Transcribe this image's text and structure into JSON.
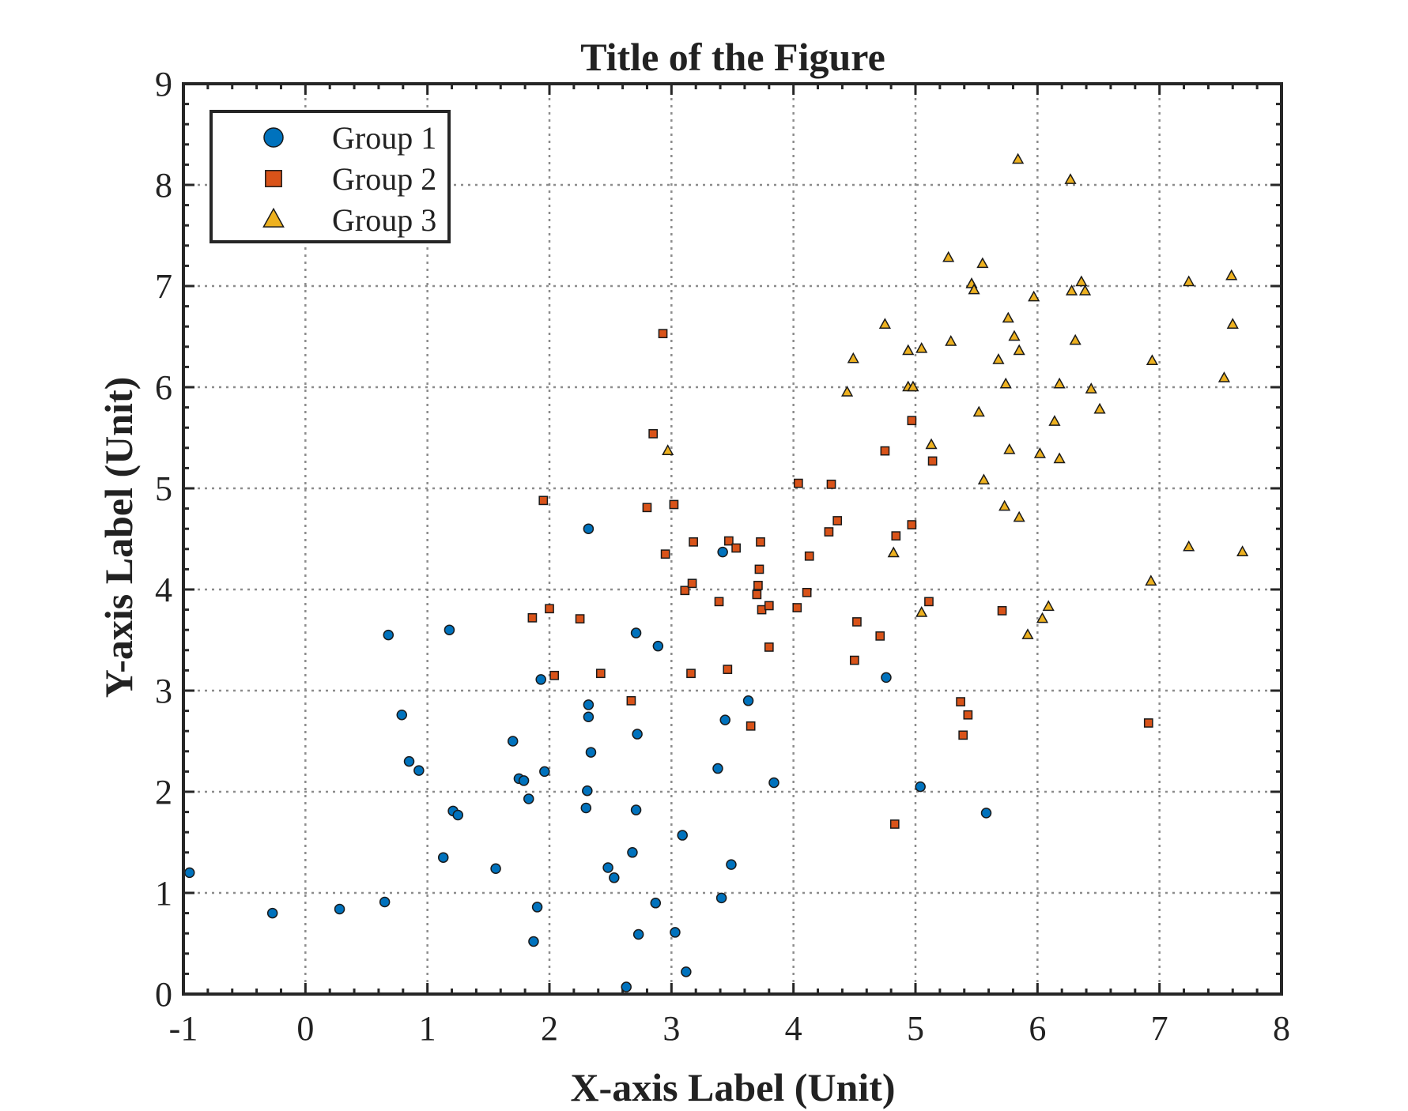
{
  "chart_data": {
    "type": "scatter",
    "title": "Title of the Figure",
    "xlabel": "X-axis Label (Unit)",
    "ylabel": "Y-axis Label (Unit)",
    "xlim": [
      -1,
      8
    ],
    "ylim": [
      0,
      9
    ],
    "xticks": [
      -1,
      0,
      1,
      2,
      3,
      4,
      5,
      6,
      7,
      8
    ],
    "yticks": [
      0,
      1,
      2,
      3,
      4,
      5,
      6,
      7,
      8,
      9
    ],
    "grid": true,
    "legend_position": "top-left",
    "series": [
      {
        "name": "Group 1",
        "marker": "circle",
        "color": "#0072BD",
        "points": [
          [
            -0.95,
            1.2
          ],
          [
            -0.27,
            0.8
          ],
          [
            0.28,
            0.84
          ],
          [
            0.65,
            0.91
          ],
          [
            0.68,
            3.55
          ],
          [
            0.79,
            2.76
          ],
          [
            0.85,
            2.3
          ],
          [
            0.93,
            2.21
          ],
          [
            1.13,
            1.35
          ],
          [
            1.18,
            3.6
          ],
          [
            1.21,
            1.81
          ],
          [
            1.25,
            1.77
          ],
          [
            1.56,
            1.24
          ],
          [
            1.7,
            2.5
          ],
          [
            1.75,
            2.13
          ],
          [
            1.79,
            2.11
          ],
          [
            1.83,
            1.93
          ],
          [
            1.87,
            0.52
          ],
          [
            1.9,
            0.86
          ],
          [
            1.93,
            3.11
          ],
          [
            1.96,
            2.2
          ],
          [
            2.3,
            1.84
          ],
          [
            2.31,
            2.01
          ],
          [
            2.32,
            2.74
          ],
          [
            2.32,
            2.86
          ],
          [
            2.34,
            2.39
          ],
          [
            2.32,
            4.6
          ],
          [
            2.48,
            1.25
          ],
          [
            2.53,
            1.15
          ],
          [
            2.63,
            0.07
          ],
          [
            2.68,
            1.4
          ],
          [
            2.71,
            1.82
          ],
          [
            2.72,
            2.57
          ],
          [
            2.71,
            3.57
          ],
          [
            2.73,
            0.59
          ],
          [
            2.87,
            0.9
          ],
          [
            2.89,
            3.44
          ],
          [
            3.03,
            0.61
          ],
          [
            3.09,
            1.57
          ],
          [
            3.12,
            0.22
          ],
          [
            3.38,
            2.23
          ],
          [
            3.41,
            0.95
          ],
          [
            3.42,
            4.37
          ],
          [
            3.44,
            2.71
          ],
          [
            3.49,
            1.28
          ],
          [
            3.63,
            2.9
          ],
          [
            3.84,
            2.09
          ],
          [
            4.76,
            3.13
          ],
          [
            5.04,
            2.05
          ],
          [
            5.58,
            1.79
          ]
        ]
      },
      {
        "name": "Group 2",
        "marker": "square",
        "color": "#D95319",
        "points": [
          [
            1.86,
            3.72
          ],
          [
            1.95,
            4.88
          ],
          [
            2.0,
            3.81
          ],
          [
            2.04,
            3.15
          ],
          [
            2.25,
            3.71
          ],
          [
            2.42,
            3.17
          ],
          [
            2.67,
            2.9
          ],
          [
            2.8,
            4.81
          ],
          [
            2.85,
            5.54
          ],
          [
            2.93,
            6.53
          ],
          [
            2.95,
            4.35
          ],
          [
            3.02,
            4.84
          ],
          [
            3.11,
            3.99
          ],
          [
            3.16,
            3.17
          ],
          [
            3.17,
            4.06
          ],
          [
            3.18,
            4.47
          ],
          [
            3.39,
            3.88
          ],
          [
            3.46,
            3.21
          ],
          [
            3.47,
            4.48
          ],
          [
            3.53,
            4.41
          ],
          [
            3.65,
            2.65
          ],
          [
            3.7,
            3.95
          ],
          [
            3.71,
            4.04
          ],
          [
            3.72,
            4.2
          ],
          [
            3.73,
            4.47
          ],
          [
            3.74,
            3.8
          ],
          [
            3.8,
            3.43
          ],
          [
            3.8,
            3.84
          ],
          [
            4.03,
            3.82
          ],
          [
            4.04,
            5.05
          ],
          [
            4.11,
            3.97
          ],
          [
            4.13,
            4.33
          ],
          [
            4.29,
            4.57
          ],
          [
            4.31,
            5.04
          ],
          [
            4.36,
            4.68
          ],
          [
            4.5,
            3.3
          ],
          [
            4.52,
            3.68
          ],
          [
            4.71,
            3.54
          ],
          [
            4.75,
            5.37
          ],
          [
            4.83,
            1.68
          ],
          [
            4.84,
            4.53
          ],
          [
            4.97,
            4.64
          ],
          [
            4.97,
            5.67
          ],
          [
            5.11,
            3.88
          ],
          [
            5.14,
            5.27
          ],
          [
            5.37,
            2.89
          ],
          [
            5.39,
            2.56
          ],
          [
            5.43,
            2.76
          ],
          [
            5.71,
            3.79
          ],
          [
            6.91,
            2.68
          ]
        ]
      },
      {
        "name": "Group 3",
        "marker": "triangle",
        "color": "#EDB120",
        "points": [
          [
            2.97,
            5.37
          ],
          [
            4.44,
            5.95
          ],
          [
            4.49,
            6.28
          ],
          [
            4.75,
            6.62
          ],
          [
            4.82,
            4.36
          ],
          [
            4.94,
            6.0
          ],
          [
            4.94,
            6.36
          ],
          [
            4.98,
            6.0
          ],
          [
            5.05,
            3.77
          ],
          [
            5.05,
            6.38
          ],
          [
            5.13,
            5.43
          ],
          [
            5.27,
            7.28
          ],
          [
            5.29,
            6.45
          ],
          [
            5.46,
            7.02
          ],
          [
            5.48,
            6.96
          ],
          [
            5.52,
            5.75
          ],
          [
            5.55,
            7.22
          ],
          [
            5.56,
            5.08
          ],
          [
            5.68,
            6.27
          ],
          [
            5.73,
            4.82
          ],
          [
            5.74,
            6.03
          ],
          [
            5.76,
            6.68
          ],
          [
            5.77,
            5.38
          ],
          [
            5.81,
            6.5
          ],
          [
            5.84,
            8.25
          ],
          [
            5.85,
            4.71
          ],
          [
            5.85,
            6.36
          ],
          [
            5.92,
            3.55
          ],
          [
            5.97,
            6.89
          ],
          [
            6.02,
            5.34
          ],
          [
            6.04,
            3.71
          ],
          [
            6.09,
            3.83
          ],
          [
            6.14,
            5.66
          ],
          [
            6.18,
            6.03
          ],
          [
            6.18,
            5.29
          ],
          [
            6.27,
            8.05
          ],
          [
            6.28,
            6.95
          ],
          [
            6.31,
            6.46
          ],
          [
            6.36,
            7.04
          ],
          [
            6.39,
            6.95
          ],
          [
            6.44,
            5.98
          ],
          [
            6.51,
            5.78
          ],
          [
            6.93,
            4.08
          ],
          [
            6.94,
            6.26
          ],
          [
            7.24,
            7.04
          ],
          [
            7.24,
            4.42
          ],
          [
            7.53,
            6.09
          ],
          [
            7.59,
            7.1
          ],
          [
            7.6,
            6.62
          ],
          [
            7.68,
            4.37
          ]
        ]
      }
    ]
  }
}
